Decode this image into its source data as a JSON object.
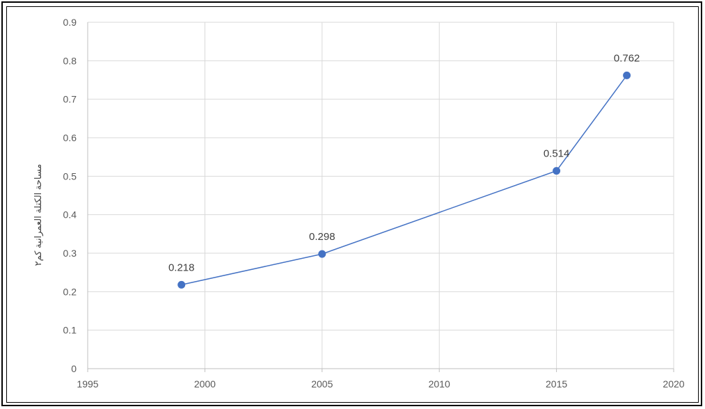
{
  "chart_data": {
    "type": "scatter",
    "title": "",
    "xlabel": "",
    "ylabel": "مساحة الكتلة العمرانية كم٢",
    "xlim": [
      1995,
      2020
    ],
    "ylim": [
      0,
      0.9
    ],
    "xticks": [
      1995,
      2000,
      2005,
      2010,
      2015,
      2020
    ],
    "yticks": [
      0,
      0.1,
      0.2,
      0.3,
      0.4,
      0.5,
      0.6,
      0.7,
      0.8,
      0.9
    ],
    "grid": true,
    "legend": "none",
    "series": [
      {
        "x": [
          1999,
          2005,
          2015,
          2018
        ],
        "y": [
          0.218,
          0.298,
          0.514,
          0.762
        ],
        "labels": [
          "0.218",
          "0.298",
          "0.514",
          "0.762"
        ],
        "color": "#4472c4",
        "connected": true
      }
    ]
  }
}
